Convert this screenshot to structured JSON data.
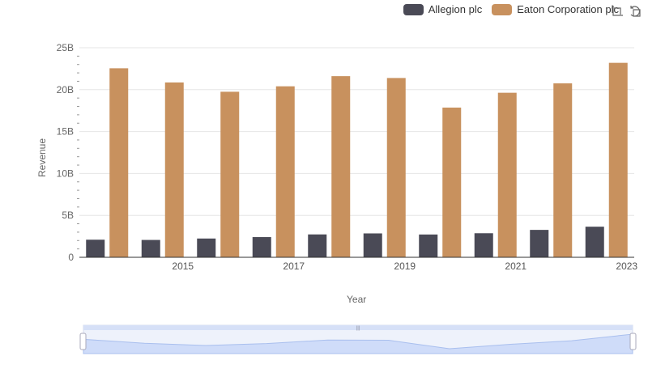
{
  "chart_data": {
    "type": "bar",
    "title": "",
    "xlabel": "Year",
    "ylabel": "Revenue",
    "categories": [
      "2014",
      "2015",
      "2016",
      "2017",
      "2018",
      "2019",
      "2020",
      "2021",
      "2022",
      "2023"
    ],
    "x_tick_labels": [
      "2015",
      "2017",
      "2019",
      "2021",
      "2023"
    ],
    "y_tick_labels": [
      "0",
      "5B",
      "10B",
      "15B",
      "20B",
      "25B"
    ],
    "ylim": [
      0,
      25
    ],
    "y_unit": "billions USD",
    "series": [
      {
        "name": "Allegion plc",
        "color": "#4a4a56",
        "values": [
          2.1,
          2.07,
          2.24,
          2.41,
          2.73,
          2.85,
          2.72,
          2.87,
          3.27,
          3.65
        ]
      },
      {
        "name": "Eaton Corporation plc",
        "color": "#c8915e",
        "values": [
          22.55,
          20.86,
          19.75,
          20.4,
          21.61,
          21.39,
          17.86,
          19.63,
          20.75,
          23.2
        ]
      }
    ],
    "legend_position": "top-right",
    "grid": true
  },
  "toolbox": {
    "zoom_icon": "zoom-select-icon",
    "reset_icon": "zoom-reset-icon"
  },
  "datazoom": {
    "handle_label": "|||",
    "range": [
      0,
      100
    ]
  }
}
